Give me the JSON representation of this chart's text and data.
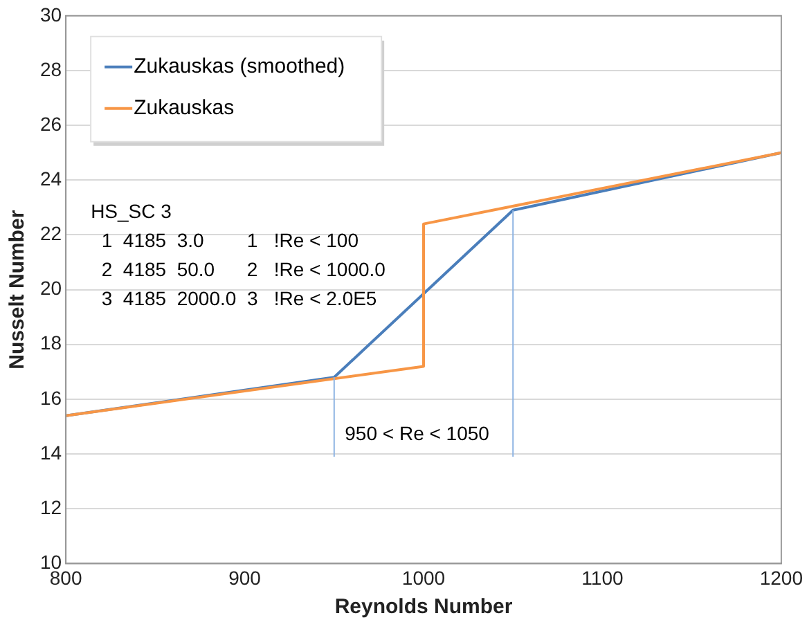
{
  "chart_data": {
    "type": "line",
    "xlabel": "Reynolds Number",
    "ylabel": "Nusselt Number",
    "xlim": [
      800,
      1200
    ],
    "xticks": [
      800,
      900,
      1000,
      1100,
      1200
    ],
    "ylim": [
      10,
      30
    ],
    "yticks": [
      10,
      12,
      14,
      16,
      18,
      20,
      22,
      24,
      26,
      28,
      30
    ],
    "grid": "y",
    "legend": "top left",
    "marker": "none",
    "line_style": "solid",
    "series": [
      {
        "name": "Zukauskas (smoothed)",
        "color": "#4a7ebb",
        "x": [
          800,
          950,
          1050,
          1200
        ],
        "values": [
          15.4,
          16.8,
          22.9,
          25.0
        ]
      },
      {
        "name": "Zukauskas",
        "color": "#f79646",
        "x": [
          800,
          1000,
          1000,
          1200
        ],
        "values": [
          15.4,
          17.2,
          22.4,
          25.0
        ]
      },
      {
        "color": "#8eb4e3",
        "x": [
          950,
          950
        ],
        "values": [
          13.9,
          16.8
        ]
      },
      {
        "color": "#8eb4e3",
        "x": [
          1050,
          1050
        ],
        "values": [
          13.9,
          22.9
        ]
      }
    ],
    "annotations": [
      "HS_SC 3",
      "  1  4185  3.0        1   !Re < 100",
      "  2  4185  50.0      2   !Re < 1000.0",
      "  3  4185  2000.0  3   !Re < 2.0E5",
      "950 < Re < 1050"
    ]
  }
}
